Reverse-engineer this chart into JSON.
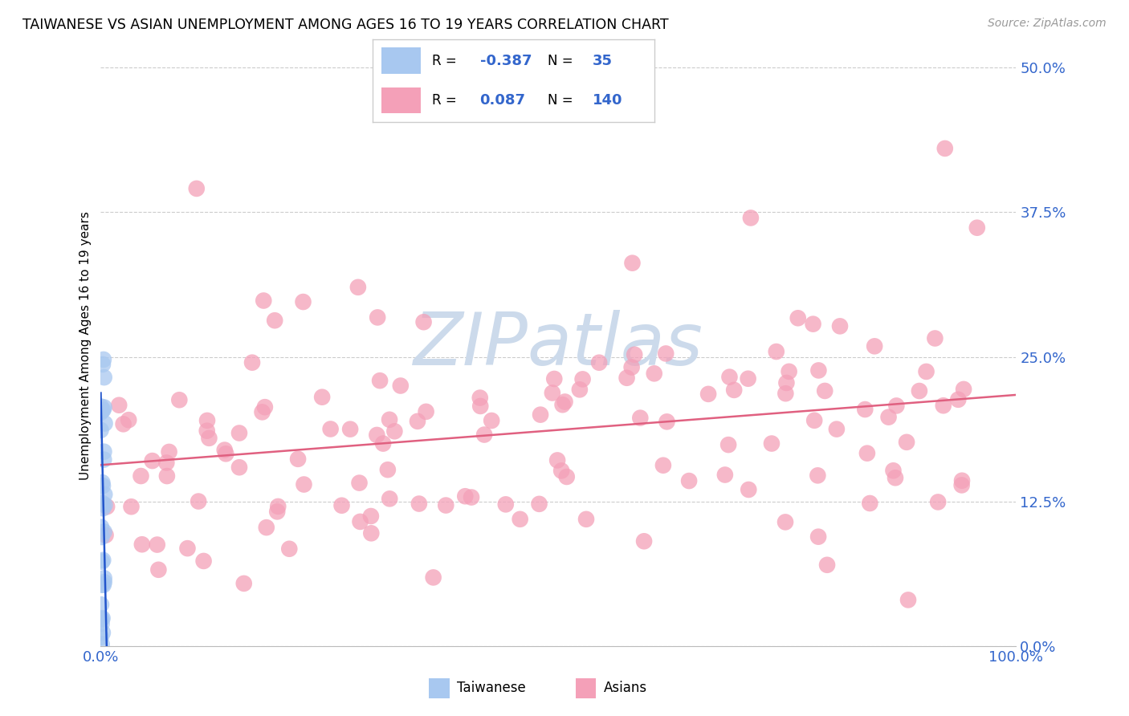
{
  "title": "TAIWANESE VS ASIAN UNEMPLOYMENT AMONG AGES 16 TO 19 YEARS CORRELATION CHART",
  "source": "Source: ZipAtlas.com",
  "ylabel": "Unemployment Among Ages 16 to 19 years",
  "xlabel_taiwanese": "Taiwanese",
  "xlabel_asians": "Asians",
  "taiwanese_R": -0.387,
  "taiwanese_N": 35,
  "asian_R": 0.087,
  "asian_N": 140,
  "xlim": [
    0.0,
    100.0
  ],
  "ylim": [
    0.0,
    52.0
  ],
  "yticks": [
    0.0,
    12.5,
    25.0,
    37.5,
    50.0
  ],
  "color_taiwanese": "#a8c8f0",
  "color_asians": "#f4a0b8",
  "color_taiwanese_line": "#2255cc",
  "color_asians_line": "#e06080",
  "background_color": "#ffffff",
  "watermark_color": "#ccdaeb",
  "grid_color": "#cccccc",
  "tick_color": "#3366cc",
  "legend_border_color": "#cccccc",
  "tw_x_seed": 99,
  "as_x_seed": 42
}
